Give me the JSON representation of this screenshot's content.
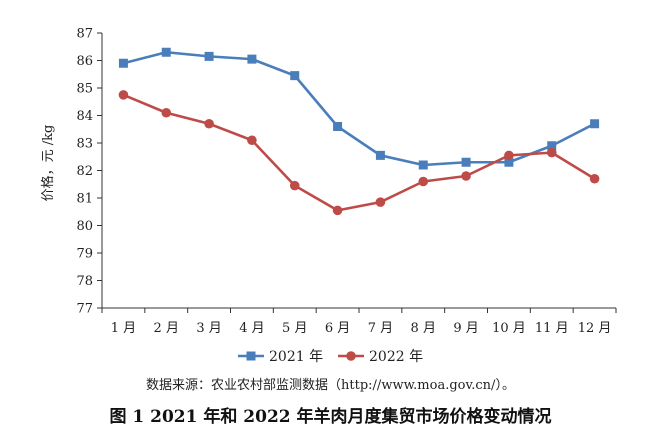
{
  "chart_data": {
    "type": "line",
    "categories": [
      "1 月",
      "2 月",
      "3 月",
      "4 月",
      "5 月",
      "6 月",
      "7 月",
      "8 月",
      "9 月",
      "10 月",
      "11 月",
      "12 月"
    ],
    "series": [
      {
        "name": "2021 年",
        "color": "#4a7ebb",
        "marker": "square",
        "values": [
          85.9,
          86.3,
          86.15,
          86.05,
          85.45,
          83.6,
          82.55,
          82.2,
          82.3,
          82.3,
          82.9,
          83.7
        ]
      },
      {
        "name": "2022 年",
        "color": "#be4b48",
        "marker": "circle",
        "values": [
          84.75,
          84.1,
          83.7,
          83.1,
          81.45,
          80.55,
          80.85,
          81.6,
          81.8,
          82.55,
          82.65,
          81.7
        ]
      }
    ],
    "ylabel": "价格，元 /kg",
    "ylim": [
      77,
      87
    ],
    "yticks": [
      77,
      78,
      79,
      80,
      81,
      82,
      83,
      84,
      85,
      86,
      87
    ],
    "grid": false,
    "legend_position": "bottom-center"
  },
  "source_note": "数据来源：农业农村部监测数据（http://www.moa.gov.cn/）。",
  "caption": "图 1  2021 年和 2022 年羊肉月度集贸市场价格变动情况"
}
